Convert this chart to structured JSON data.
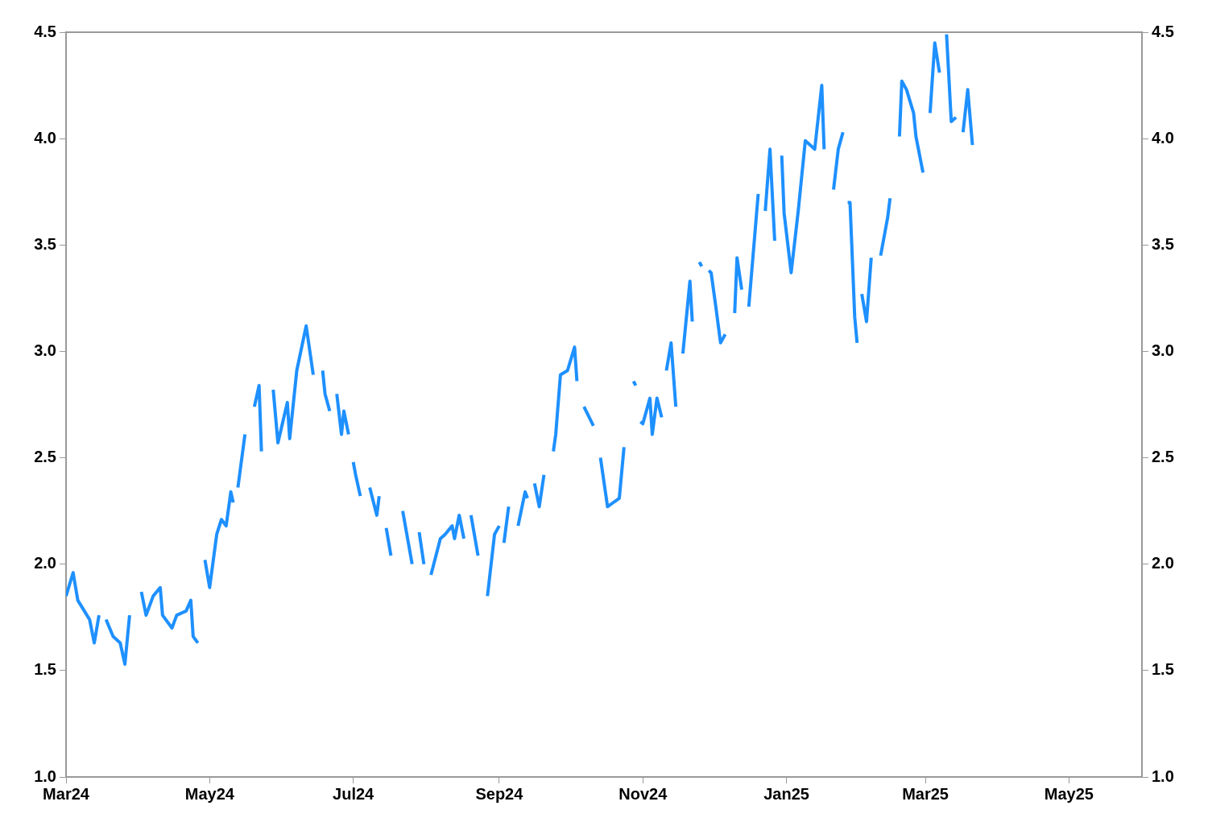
{
  "chart_data": {
    "type": "line",
    "grid": false,
    "legend": false,
    "marker": "none",
    "line_style": "solid",
    "x": [
      "2024-03-01",
      "2024-03-04",
      "2024-03-06",
      "2024-03-11",
      "2024-03-13",
      "2024-03-15",
      "2024-03-16",
      "2024-03-18",
      "2024-03-21",
      "2024-03-24",
      "2024-03-26",
      "2024-03-28",
      "2024-03-30",
      "2024-04-02",
      "2024-04-04",
      "2024-04-07",
      "2024-04-10",
      "2024-04-11",
      "2024-04-15",
      "2024-04-17",
      "2024-04-21",
      "2024-04-23",
      "2024-04-24",
      "2024-04-26",
      "2024-04-28",
      "2024-04-29",
      "2024-05-01",
      "2024-05-04",
      "2024-05-06",
      "2024-05-08",
      "2024-05-10",
      "2024-05-11",
      "2024-05-12",
      "2024-05-13",
      "2024-05-16",
      "2024-05-18",
      "2024-05-20",
      "2024-05-22",
      "2024-05-23",
      "2024-05-25",
      "2024-05-28",
      "2024-05-30",
      "2024-06-03",
      "2024-06-04",
      "2024-06-07",
      "2024-06-11",
      "2024-06-14",
      "2024-06-16",
      "2024-06-18",
      "2024-06-19",
      "2024-06-21",
      "2024-06-22",
      "2024-06-24",
      "2024-06-26",
      "2024-06-27",
      "2024-06-29",
      "2024-06-30",
      "2024-07-01",
      "2024-07-02",
      "2024-07-04",
      "2024-07-06",
      "2024-07-08",
      "2024-07-11",
      "2024-07-12",
      "2024-07-14",
      "2024-07-15",
      "2024-07-17",
      "2024-07-19",
      "2024-07-22",
      "2024-07-26",
      "2024-07-27",
      "2024-07-29",
      "2024-07-31",
      "2024-08-01",
      "2024-08-03",
      "2024-08-07",
      "2024-08-09",
      "2024-08-12",
      "2024-08-13",
      "2024-08-15",
      "2024-08-17",
      "2024-08-18",
      "2024-08-20",
      "2024-08-23",
      "2024-08-25",
      "2024-08-27",
      "2024-08-30",
      "2024-09-01",
      "2024-09-02",
      "2024-09-03",
      "2024-09-05",
      "2024-09-07",
      "2024-09-09",
      "2024-09-12",
      "2024-09-13",
      "2024-09-15",
      "2024-09-16",
      "2024-09-18",
      "2024-09-20",
      "2024-09-22",
      "2024-09-24",
      "2024-09-25",
      "2024-09-27",
      "2024-09-30",
      "2024-10-03",
      "2024-10-04",
      "2024-10-05",
      "2024-10-07",
      "2024-10-11",
      "2024-10-12",
      "2024-10-14",
      "2024-10-17",
      "2024-10-22",
      "2024-10-24",
      "2024-10-26",
      "2024-10-28",
      "2024-10-29",
      "2024-10-30",
      "2024-10-31",
      "2024-11-01",
      "2024-11-04",
      "2024-11-05",
      "2024-11-07",
      "2024-11-09",
      "2024-11-10",
      "2024-11-11",
      "2024-11-13",
      "2024-11-15",
      "2024-11-17",
      "2024-11-18",
      "2024-11-21",
      "2024-11-22",
      "2024-11-24",
      "2024-11-25",
      "2024-11-26",
      "2024-11-27",
      "2024-11-29",
      "2024-11-30",
      "2024-12-02",
      "2024-12-04",
      "2024-12-06",
      "2024-12-08",
      "2024-12-10",
      "2024-12-11",
      "2024-12-13",
      "2024-12-15",
      "2024-12-16",
      "2024-12-20",
      "2024-12-21",
      "2024-12-23",
      "2024-12-25",
      "2024-12-27",
      "2024-12-28",
      "2024-12-30",
      "2024-12-31",
      "2025-01-03",
      "2025-01-06",
      "2025-01-09",
      "2025-01-13",
      "2025-01-16",
      "2025-01-17",
      "2025-01-19",
      "2025-01-21",
      "2025-01-23",
      "2025-01-25",
      "2025-01-26",
      "2025-01-27",
      "2025-01-28",
      "2025-01-30",
      "2025-01-31",
      "2025-02-01",
      "2025-02-02",
      "2025-02-04",
      "2025-02-06",
      "2025-02-08",
      "2025-02-10",
      "2025-02-13",
      "2025-02-14",
      "2025-02-15",
      "2025-02-18",
      "2025-02-19",
      "2025-02-21",
      "2025-02-24",
      "2025-02-25",
      "2025-02-28",
      "2025-03-01",
      "2025-03-03",
      "2025-03-05",
      "2025-03-07",
      "2025-03-08",
      "2025-03-10",
      "2025-03-12",
      "2025-03-14",
      "2025-03-15",
      "2025-03-17",
      "2025-03-19",
      "2025-03-21"
    ],
    "series": [
      {
        "color": "#1e90ff",
        "values": [
          1.85,
          1.96,
          1.83,
          1.74,
          1.63,
          1.76,
          null,
          1.74,
          1.66,
          1.63,
          1.53,
          1.76,
          null,
          1.87,
          1.76,
          1.85,
          1.89,
          1.76,
          1.7,
          1.76,
          1.78,
          1.83,
          1.66,
          1.63,
          null,
          2.02,
          1.89,
          2.14,
          2.21,
          2.18,
          2.34,
          2.29,
          null,
          2.36,
          2.61,
          null,
          2.74,
          2.84,
          2.53,
          null,
          2.82,
          2.57,
          2.76,
          2.59,
          2.91,
          3.12,
          2.89,
          null,
          2.91,
          2.8,
          2.72,
          null,
          2.8,
          2.61,
          2.72,
          2.61,
          null,
          2.48,
          2.42,
          2.32,
          null,
          2.36,
          2.23,
          2.32,
          null,
          2.17,
          2.04,
          null,
          2.25,
          2.0,
          null,
          2.15,
          2.0,
          null,
          1.95,
          2.12,
          2.14,
          2.18,
          2.12,
          2.23,
          2.12,
          null,
          2.23,
          2.04,
          null,
          1.85,
          2.14,
          2.18,
          null,
          2.1,
          2.27,
          null,
          2.18,
          2.34,
          2.31,
          null,
          2.38,
          2.27,
          2.42,
          null,
          2.53,
          2.61,
          2.89,
          2.91,
          3.02,
          2.86,
          null,
          2.74,
          2.65,
          null,
          2.5,
          2.27,
          2.31,
          2.55,
          null,
          2.86,
          2.84,
          null,
          2.67,
          2.66,
          2.78,
          2.61,
          2.78,
          2.69,
          null,
          2.91,
          3.04,
          2.74,
          null,
          2.99,
          3.33,
          3.14,
          null,
          3.42,
          3.4,
          null,
          3.38,
          3.37,
          3.21,
          3.04,
          3.08,
          null,
          3.18,
          3.44,
          3.29,
          null,
          3.21,
          3.74,
          null,
          3.66,
          3.95,
          3.52,
          null,
          3.92,
          3.65,
          3.37,
          3.66,
          3.99,
          3.95,
          4.25,
          3.95,
          null,
          3.76,
          3.95,
          4.03,
          null,
          3.7,
          3.7,
          3.16,
          3.04,
          null,
          3.27,
          3.14,
          3.44,
          null,
          3.45,
          3.63,
          3.72,
          null,
          4.01,
          4.27,
          4.23,
          4.12,
          4.01,
          3.84,
          null,
          4.12,
          4.45,
          4.31,
          null,
          4.49,
          4.08,
          4.1,
          null,
          4.03,
          4.23,
          3.97
        ]
      }
    ],
    "xlim": [
      "2024-03-01",
      "2025-06-01"
    ],
    "xticks": [
      {
        "value": "2024-03-01",
        "label": "Mar24"
      },
      {
        "value": "2024-05-01",
        "label": "May24"
      },
      {
        "value": "2024-07-01",
        "label": "Jul24"
      },
      {
        "value": "2024-09-01",
        "label": "Sep24"
      },
      {
        "value": "2024-11-01",
        "label": "Nov24"
      },
      {
        "value": "2025-01-01",
        "label": "Jan25"
      },
      {
        "value": "2025-03-01",
        "label": "Mar25"
      },
      {
        "value": "2025-05-01",
        "label": "May25"
      }
    ],
    "ylim": [
      1,
      4.5
    ],
    "yticks": [
      {
        "value": 1,
        "label": "1.0"
      },
      {
        "value": 1.5,
        "label": "1.5"
      },
      {
        "value": 2,
        "label": "2.0"
      },
      {
        "value": 2.5,
        "label": "2.5"
      },
      {
        "value": 3,
        "label": "3.0"
      },
      {
        "value": 3.5,
        "label": "3.5"
      },
      {
        "value": 4,
        "label": "4.0"
      },
      {
        "value": 4.5,
        "label": "4.5"
      }
    ],
    "y2lim": [
      1,
      4.5
    ],
    "y2ticks": [
      {
        "value": 1,
        "label": "1.0"
      },
      {
        "value": 1.5,
        "label": "1.5"
      },
      {
        "value": 2,
        "label": "2.0"
      },
      {
        "value": 2.5,
        "label": "2.5"
      },
      {
        "value": 3,
        "label": "3.0"
      },
      {
        "value": 3.5,
        "label": "3.5"
      },
      {
        "value": 4,
        "label": "4.0"
      },
      {
        "value": 4.5,
        "label": "4.5"
      }
    ]
  }
}
